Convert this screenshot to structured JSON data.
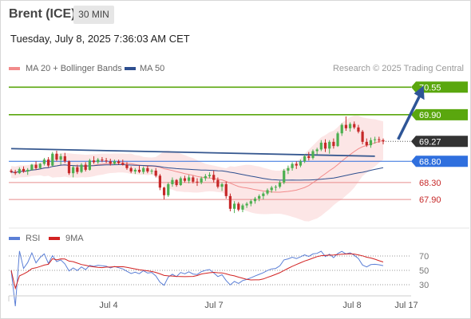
{
  "header": {
    "title": "Brent (ICE)",
    "interval": "30 MIN"
  },
  "timestamp": "Tuesday, July 8, 2025 7:36:03 AM CET",
  "legend": {
    "ma20": "MA 20 + Bollinger Bands",
    "ma50": "MA 50",
    "research": "Research © 2025 Trading Central"
  },
  "rsi_legend": {
    "rsi": "RSI",
    "ma": "9MA"
  },
  "colors": {
    "bullish": "#4caf50",
    "bearish": "#c62828",
    "ma20": "#f28b8b",
    "bands": "#fbdcdc",
    "ma50": "#2e4f8f",
    "resistance": "#5aa70e",
    "support": "#e88d8d",
    "pivot": "#2f6fde",
    "current": "#333333",
    "arrow": "#2e5597",
    "rsi": "#5b7fd6",
    "rsi_ma": "#d22222"
  },
  "chart_data": [
    {
      "type": "candlestick",
      "x_ticks": [
        "Jul 4",
        "Jul 7",
        "Jul 8",
        "Jul 17"
      ],
      "price_levels": [
        {
          "value": 70.55,
          "label": "70.55",
          "kind": "resistance"
        },
        {
          "value": 69.9,
          "label": "69.90",
          "kind": "resistance"
        },
        {
          "value": 69.27,
          "label": "69.27",
          "kind": "current"
        },
        {
          "value": 68.8,
          "label": "68.80",
          "kind": "pivot"
        },
        {
          "value": 68.3,
          "label": "68.30",
          "kind": "support"
        },
        {
          "value": 67.9,
          "label": "67.90",
          "kind": "support"
        }
      ],
      "y_range": [
        67.3,
        70.8
      ],
      "trendline": [
        [
          0,
          69.1
        ],
        [
          88,
          68.92
        ]
      ],
      "projection_arrow": [
        [
          94,
          69.28
        ],
        [
          99,
          70.55
        ]
      ],
      "ohlc": [
        [
          68.58,
          68.62,
          68.52,
          68.55
        ],
        [
          68.55,
          68.6,
          68.48,
          68.52
        ],
        [
          68.52,
          68.66,
          68.5,
          68.62
        ],
        [
          68.62,
          68.68,
          68.53,
          68.56
        ],
        [
          68.56,
          68.64,
          68.48,
          68.6
        ],
        [
          68.6,
          68.74,
          68.58,
          68.72
        ],
        [
          68.72,
          68.8,
          68.6,
          68.64
        ],
        [
          68.64,
          68.76,
          68.62,
          68.74
        ],
        [
          68.74,
          68.88,
          68.7,
          68.84
        ],
        [
          68.84,
          68.9,
          68.66,
          68.7
        ],
        [
          68.7,
          69.02,
          68.68,
          68.98
        ],
        [
          68.98,
          69.05,
          68.8,
          68.84
        ],
        [
          68.84,
          68.98,
          68.72,
          68.92
        ],
        [
          68.92,
          69.0,
          68.76,
          68.8
        ],
        [
          68.8,
          68.82,
          68.48,
          68.52
        ],
        [
          68.52,
          68.7,
          68.42,
          68.66
        ],
        [
          68.66,
          68.72,
          68.5,
          68.55
        ],
        [
          68.55,
          68.76,
          68.52,
          68.72
        ],
        [
          68.72,
          68.78,
          68.56,
          68.6
        ],
        [
          68.6,
          68.86,
          68.58,
          68.82
        ],
        [
          68.82,
          68.92,
          68.74,
          68.78
        ],
        [
          68.78,
          68.88,
          68.74,
          68.84
        ],
        [
          68.84,
          68.9,
          68.78,
          68.82
        ],
        [
          68.82,
          68.88,
          68.76,
          68.8
        ],
        [
          68.8,
          68.86,
          68.7,
          68.74
        ],
        [
          68.74,
          68.84,
          68.72,
          68.8
        ],
        [
          68.8,
          68.84,
          68.72,
          68.76
        ],
        [
          68.76,
          68.84,
          68.7,
          68.72
        ],
        [
          68.72,
          68.78,
          68.6,
          68.64
        ],
        [
          68.64,
          68.68,
          68.52,
          68.56
        ],
        [
          68.56,
          68.64,
          68.5,
          68.6
        ],
        [
          68.6,
          68.7,
          68.52,
          68.55
        ],
        [
          68.55,
          68.68,
          68.5,
          68.64
        ],
        [
          68.64,
          68.7,
          68.52,
          68.56
        ],
        [
          68.56,
          68.62,
          68.5,
          68.58
        ],
        [
          68.58,
          68.64,
          68.42,
          68.46
        ],
        [
          68.46,
          68.5,
          68.12,
          68.18
        ],
        [
          68.18,
          68.2,
          67.9,
          68.0
        ],
        [
          68.0,
          68.3,
          67.96,
          68.26
        ],
        [
          68.26,
          68.42,
          68.2,
          68.36
        ],
        [
          68.36,
          68.38,
          68.2,
          68.24
        ],
        [
          68.24,
          68.44,
          68.22,
          68.4
        ],
        [
          68.4,
          68.46,
          68.3,
          68.34
        ],
        [
          68.34,
          68.48,
          68.28,
          68.42
        ],
        [
          68.42,
          68.46,
          68.28,
          68.32
        ],
        [
          68.32,
          68.4,
          68.22,
          68.3
        ],
        [
          68.3,
          68.44,
          68.26,
          68.4
        ],
        [
          68.4,
          68.5,
          68.34,
          68.45
        ],
        [
          68.45,
          68.54,
          68.4,
          68.48
        ],
        [
          68.48,
          68.58,
          68.3,
          68.36
        ],
        [
          68.36,
          68.42,
          68.16,
          68.2
        ],
        [
          68.2,
          68.3,
          68.1,
          68.26
        ],
        [
          68.26,
          68.32,
          67.92,
          67.98
        ],
        [
          67.98,
          68.04,
          67.62,
          67.68
        ],
        [
          67.68,
          67.86,
          67.58,
          67.8
        ],
        [
          67.8,
          67.84,
          67.62,
          67.66
        ],
        [
          67.66,
          67.8,
          67.6,
          67.76
        ],
        [
          67.76,
          67.84,
          67.7,
          67.8
        ],
        [
          67.8,
          67.9,
          67.74,
          67.86
        ],
        [
          67.86,
          67.96,
          67.8,
          67.92
        ],
        [
          67.92,
          68.02,
          67.86,
          67.98
        ],
        [
          67.98,
          68.08,
          67.9,
          68.04
        ],
        [
          68.04,
          68.16,
          68.0,
          68.12
        ],
        [
          68.12,
          68.22,
          68.06,
          68.18
        ],
        [
          68.18,
          68.24,
          68.1,
          68.2
        ],
        [
          68.2,
          68.34,
          68.16,
          68.3
        ],
        [
          68.3,
          68.62,
          68.26,
          68.58
        ],
        [
          68.58,
          68.7,
          68.5,
          68.64
        ],
        [
          68.64,
          68.78,
          68.58,
          68.74
        ],
        [
          68.74,
          68.8,
          68.62,
          68.7
        ],
        [
          68.7,
          68.84,
          68.66,
          68.8
        ],
        [
          68.8,
          68.96,
          68.76,
          68.92
        ],
        [
          68.92,
          69.02,
          68.82,
          68.88
        ],
        [
          68.88,
          69.08,
          68.84,
          69.04
        ],
        [
          69.04,
          69.12,
          68.96,
          69.08
        ],
        [
          69.08,
          69.3,
          69.04,
          69.24
        ],
        [
          69.24,
          69.32,
          69.02,
          69.1
        ],
        [
          69.1,
          69.3,
          68.98,
          69.26
        ],
        [
          69.26,
          69.34,
          69.1,
          69.16
        ],
        [
          69.16,
          69.5,
          69.14,
          69.46
        ],
        [
          69.46,
          69.7,
          69.4,
          69.66
        ],
        [
          69.66,
          69.86,
          69.52,
          69.58
        ],
        [
          69.58,
          69.72,
          69.5,
          69.68
        ],
        [
          69.68,
          69.74,
          69.56,
          69.6
        ],
        [
          69.6,
          69.66,
          69.46,
          69.5
        ],
        [
          69.5,
          69.54,
          69.2,
          69.26
        ],
        [
          69.26,
          69.34,
          69.14,
          69.18
        ],
        [
          69.18,
          69.36,
          69.12,
          69.3
        ],
        [
          69.3,
          69.38,
          69.22,
          69.32
        ],
        [
          69.32,
          69.38,
          69.24,
          69.3
        ],
        [
          69.3,
          69.34,
          69.2,
          69.27
        ]
      ]
    },
    {
      "type": "line",
      "title": "RSI",
      "y_ticks": [
        70,
        50,
        30
      ],
      "y_range": [
        20,
        80
      ]
    }
  ]
}
